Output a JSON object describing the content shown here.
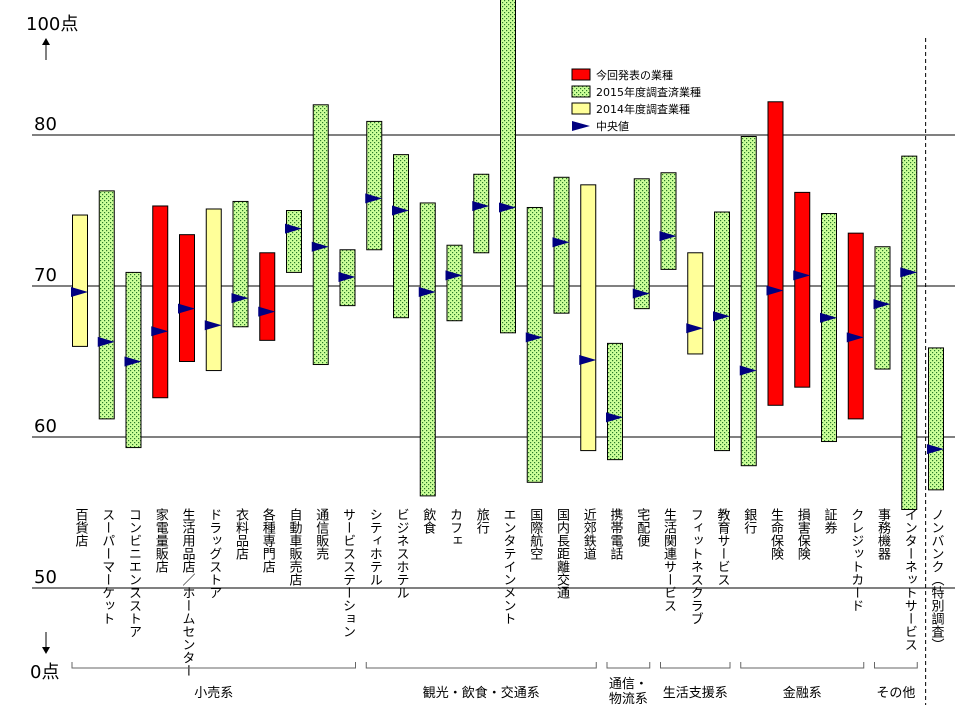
{
  "chart_data": {
    "type": "range-bar",
    "title": "",
    "xlabel": "",
    "ylabel": "",
    "y_axis": {
      "top_label": "100点",
      "bottom_label": "0点",
      "ticks": [
        "80",
        "70",
        "60",
        "50"
      ],
      "tick_values": [
        80,
        70,
        60,
        50
      ],
      "display_range": [
        52,
        100
      ],
      "break_between": [
        50,
        100
      ]
    },
    "legend": {
      "placement": "top-center",
      "entries": [
        {
          "label": "今回発表の業種",
          "kind": "current"
        },
        {
          "label": "2015年度調査済業種",
          "kind": "y2015"
        },
        {
          "label": "2014年度調査業種",
          "kind": "y2014"
        },
        {
          "label": "中央値",
          "kind": "median"
        }
      ]
    },
    "colors": {
      "current": "#ff0000",
      "y2015": "#ccff99",
      "y2014": "#ffff99",
      "median": "#000080",
      "gridline": "#000000"
    },
    "categories": [
      {
        "label": "百貨店",
        "kind": "y2014",
        "low": 66.0,
        "high": 74.7,
        "median": 69.6
      },
      {
        "label": "スーパーマーケット",
        "kind": "y2015",
        "low": 61.2,
        "high": 76.3,
        "median": 66.3
      },
      {
        "label": "コンビニエンスストア",
        "kind": "y2015",
        "low": 59.3,
        "high": 70.9,
        "median": 65.0
      },
      {
        "label": "家電量販店",
        "kind": "current",
        "low": 62.6,
        "high": 75.3,
        "median": 67.0
      },
      {
        "label": "生活用品店／ホームセンター",
        "kind": "current",
        "low": 65.0,
        "high": 73.4,
        "median": 68.5
      },
      {
        "label": "ドラッグストア",
        "kind": "y2014",
        "low": 64.4,
        "high": 75.1,
        "median": 67.4
      },
      {
        "label": "衣料品店",
        "kind": "y2015",
        "low": 67.3,
        "high": 75.6,
        "median": 69.2
      },
      {
        "label": "各種専門店",
        "kind": "current",
        "low": 66.4,
        "high": 72.2,
        "median": 68.3
      },
      {
        "label": "自動車販売店",
        "kind": "y2015",
        "low": 70.9,
        "high": 75.0,
        "median": 73.8
      },
      {
        "label": "通信販売",
        "kind": "y2015",
        "low": 64.8,
        "high": 82.0,
        "median": 72.6
      },
      {
        "label": "サービスステーション",
        "kind": "y2015",
        "low": 68.7,
        "high": 72.4,
        "median": 70.6
      },
      {
        "label": "シティホテル",
        "kind": "y2015",
        "low": 72.4,
        "high": 80.9,
        "median": 75.8
      },
      {
        "label": "ビジネスホテル",
        "kind": "y2015",
        "low": 67.9,
        "high": 78.7,
        "median": 75.0
      },
      {
        "label": "飲食",
        "kind": "y2015",
        "low": 56.1,
        "high": 75.5,
        "median": 69.6
      },
      {
        "label": "カフェ",
        "kind": "y2015",
        "low": 67.7,
        "high": 72.7,
        "median": 70.7
      },
      {
        "label": "旅行",
        "kind": "y2015",
        "low": 72.2,
        "high": 77.4,
        "median": 75.3
      },
      {
        "label": "エンタテインメント",
        "kind": "y2015",
        "low": 66.9,
        "high": 89.5,
        "median": 75.2
      },
      {
        "label": "国際航空",
        "kind": "y2015",
        "low": 57.0,
        "high": 75.2,
        "median": 66.6
      },
      {
        "label": "国内長距離交通",
        "kind": "y2015",
        "low": 68.2,
        "high": 77.2,
        "median": 72.9
      },
      {
        "label": "近郊鉄道",
        "kind": "y2014",
        "low": 59.1,
        "high": 76.7,
        "median": 65.1
      },
      {
        "label": "携帯電話",
        "kind": "y2015",
        "low": 58.5,
        "high": 66.2,
        "median": 61.3
      },
      {
        "label": "宅配便",
        "kind": "y2015",
        "low": 68.5,
        "high": 77.1,
        "median": 69.5
      },
      {
        "label": "生活関連サービス",
        "kind": "y2015",
        "low": 71.1,
        "high": 77.5,
        "median": 73.3
      },
      {
        "label": "フィットネスクラブ",
        "kind": "y2014",
        "low": 65.5,
        "high": 72.2,
        "median": 67.2
      },
      {
        "label": "教育サービス",
        "kind": "y2015",
        "low": 59.1,
        "high": 74.9,
        "median": 68.0
      },
      {
        "label": "銀行",
        "kind": "y2015",
        "low": 58.1,
        "high": 79.9,
        "median": 64.4
      },
      {
        "label": "生命保険",
        "kind": "current",
        "low": 62.1,
        "high": 82.2,
        "median": 69.7
      },
      {
        "label": "損害保険",
        "kind": "current",
        "low": 63.3,
        "high": 76.2,
        "median": 70.7
      },
      {
        "label": "証券",
        "kind": "y2015",
        "low": 59.7,
        "high": 74.8,
        "median": 67.9
      },
      {
        "label": "クレジットカード",
        "kind": "current",
        "low": 61.2,
        "high": 73.5,
        "median": 66.6
      },
      {
        "label": "事務機器",
        "kind": "y2015",
        "low": 64.5,
        "high": 72.6,
        "median": 68.8
      },
      {
        "label": "インターネットサービス",
        "kind": "y2015",
        "low": 55.2,
        "high": 78.6,
        "median": 70.9
      },
      {
        "label": "ノンバンク（特別調査）",
        "kind": "y2015",
        "low": 56.5,
        "high": 65.9,
        "median": 59.2
      }
    ],
    "groups": [
      {
        "label": "小売系",
        "first": 0,
        "last": 10
      },
      {
        "label": "観光・飲食・交通系",
        "first": 11,
        "last": 19
      },
      {
        "label": "通信・\n物流系",
        "first": 20,
        "last": 21
      },
      {
        "label": "生活支援系",
        "first": 22,
        "last": 24
      },
      {
        "label": "金融系",
        "first": 25,
        "last": 29
      },
      {
        "label": "その他",
        "first": 30,
        "last": 31
      }
    ]
  }
}
